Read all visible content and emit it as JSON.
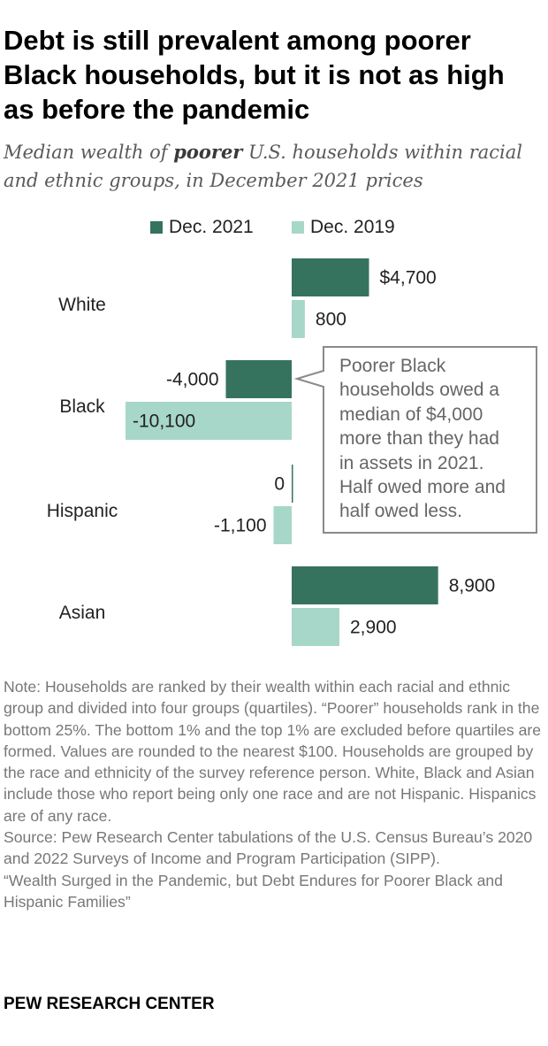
{
  "title": "Debt is still prevalent among poorer Black households, but it is not as high as before the pandemic",
  "subtitle": {
    "pre": "Median wealth of ",
    "bold": "poorer",
    "post": " U.S. households within racial and ethnic groups, in December 2021 prices"
  },
  "colors": {
    "dec2021": "#36735f",
    "dec2019": "#a7d7c8",
    "callout_border": "#8a8a8a"
  },
  "chart_data": {
    "type": "bar",
    "orientation": "horizontal",
    "categories": [
      "White",
      "Black",
      "Hispanic",
      "Asian"
    ],
    "series": [
      {
        "name": "Dec. 2021",
        "values": [
          4700,
          -4000,
          0,
          8900
        ],
        "labels": [
          "$4,700",
          "-4,000",
          "0",
          "8,900"
        ]
      },
      {
        "name": "Dec. 2019",
        "values": [
          800,
          -10100,
          -1100,
          2900
        ],
        "labels": [
          "800",
          "-10,100",
          "-1,100",
          "2,900"
        ]
      }
    ],
    "legend_position": "top",
    "grid": false,
    "annotation": "Poorer Black households owed a median of $4,000 more than they had in assets in 2021. Half owed more and half owed less."
  },
  "callout_lines": [
    "Poorer Black",
    "households owed a",
    "median of $4,000",
    "more than they had",
    "in assets in 2021.",
    "Half owed more and",
    "half owed less."
  ],
  "note": "Note: Households are ranked by their wealth within each racial and ethnic group and divided into four groups (quartiles). “Poorer” households rank in the bottom 25%. The bottom 1% and the top 1% are excluded before quartiles are formed. Values are rounded to the nearest $100. Households are grouped by the race and ethnicity of the survey reference person. White, Black and Asian include those who report being only one race and are not Hispanic. Hispanics are of any race.",
  "source": "Source: Pew Research Center tabulations of the U.S. Census Bureau’s 2020 and 2022 Surveys of Income and Program Participation (SIPP).",
  "report": "“Wealth Surged in the Pandemic, but Debt Endures for Poorer Black and Hispanic Families”",
  "brand": "PEW RESEARCH CENTER"
}
